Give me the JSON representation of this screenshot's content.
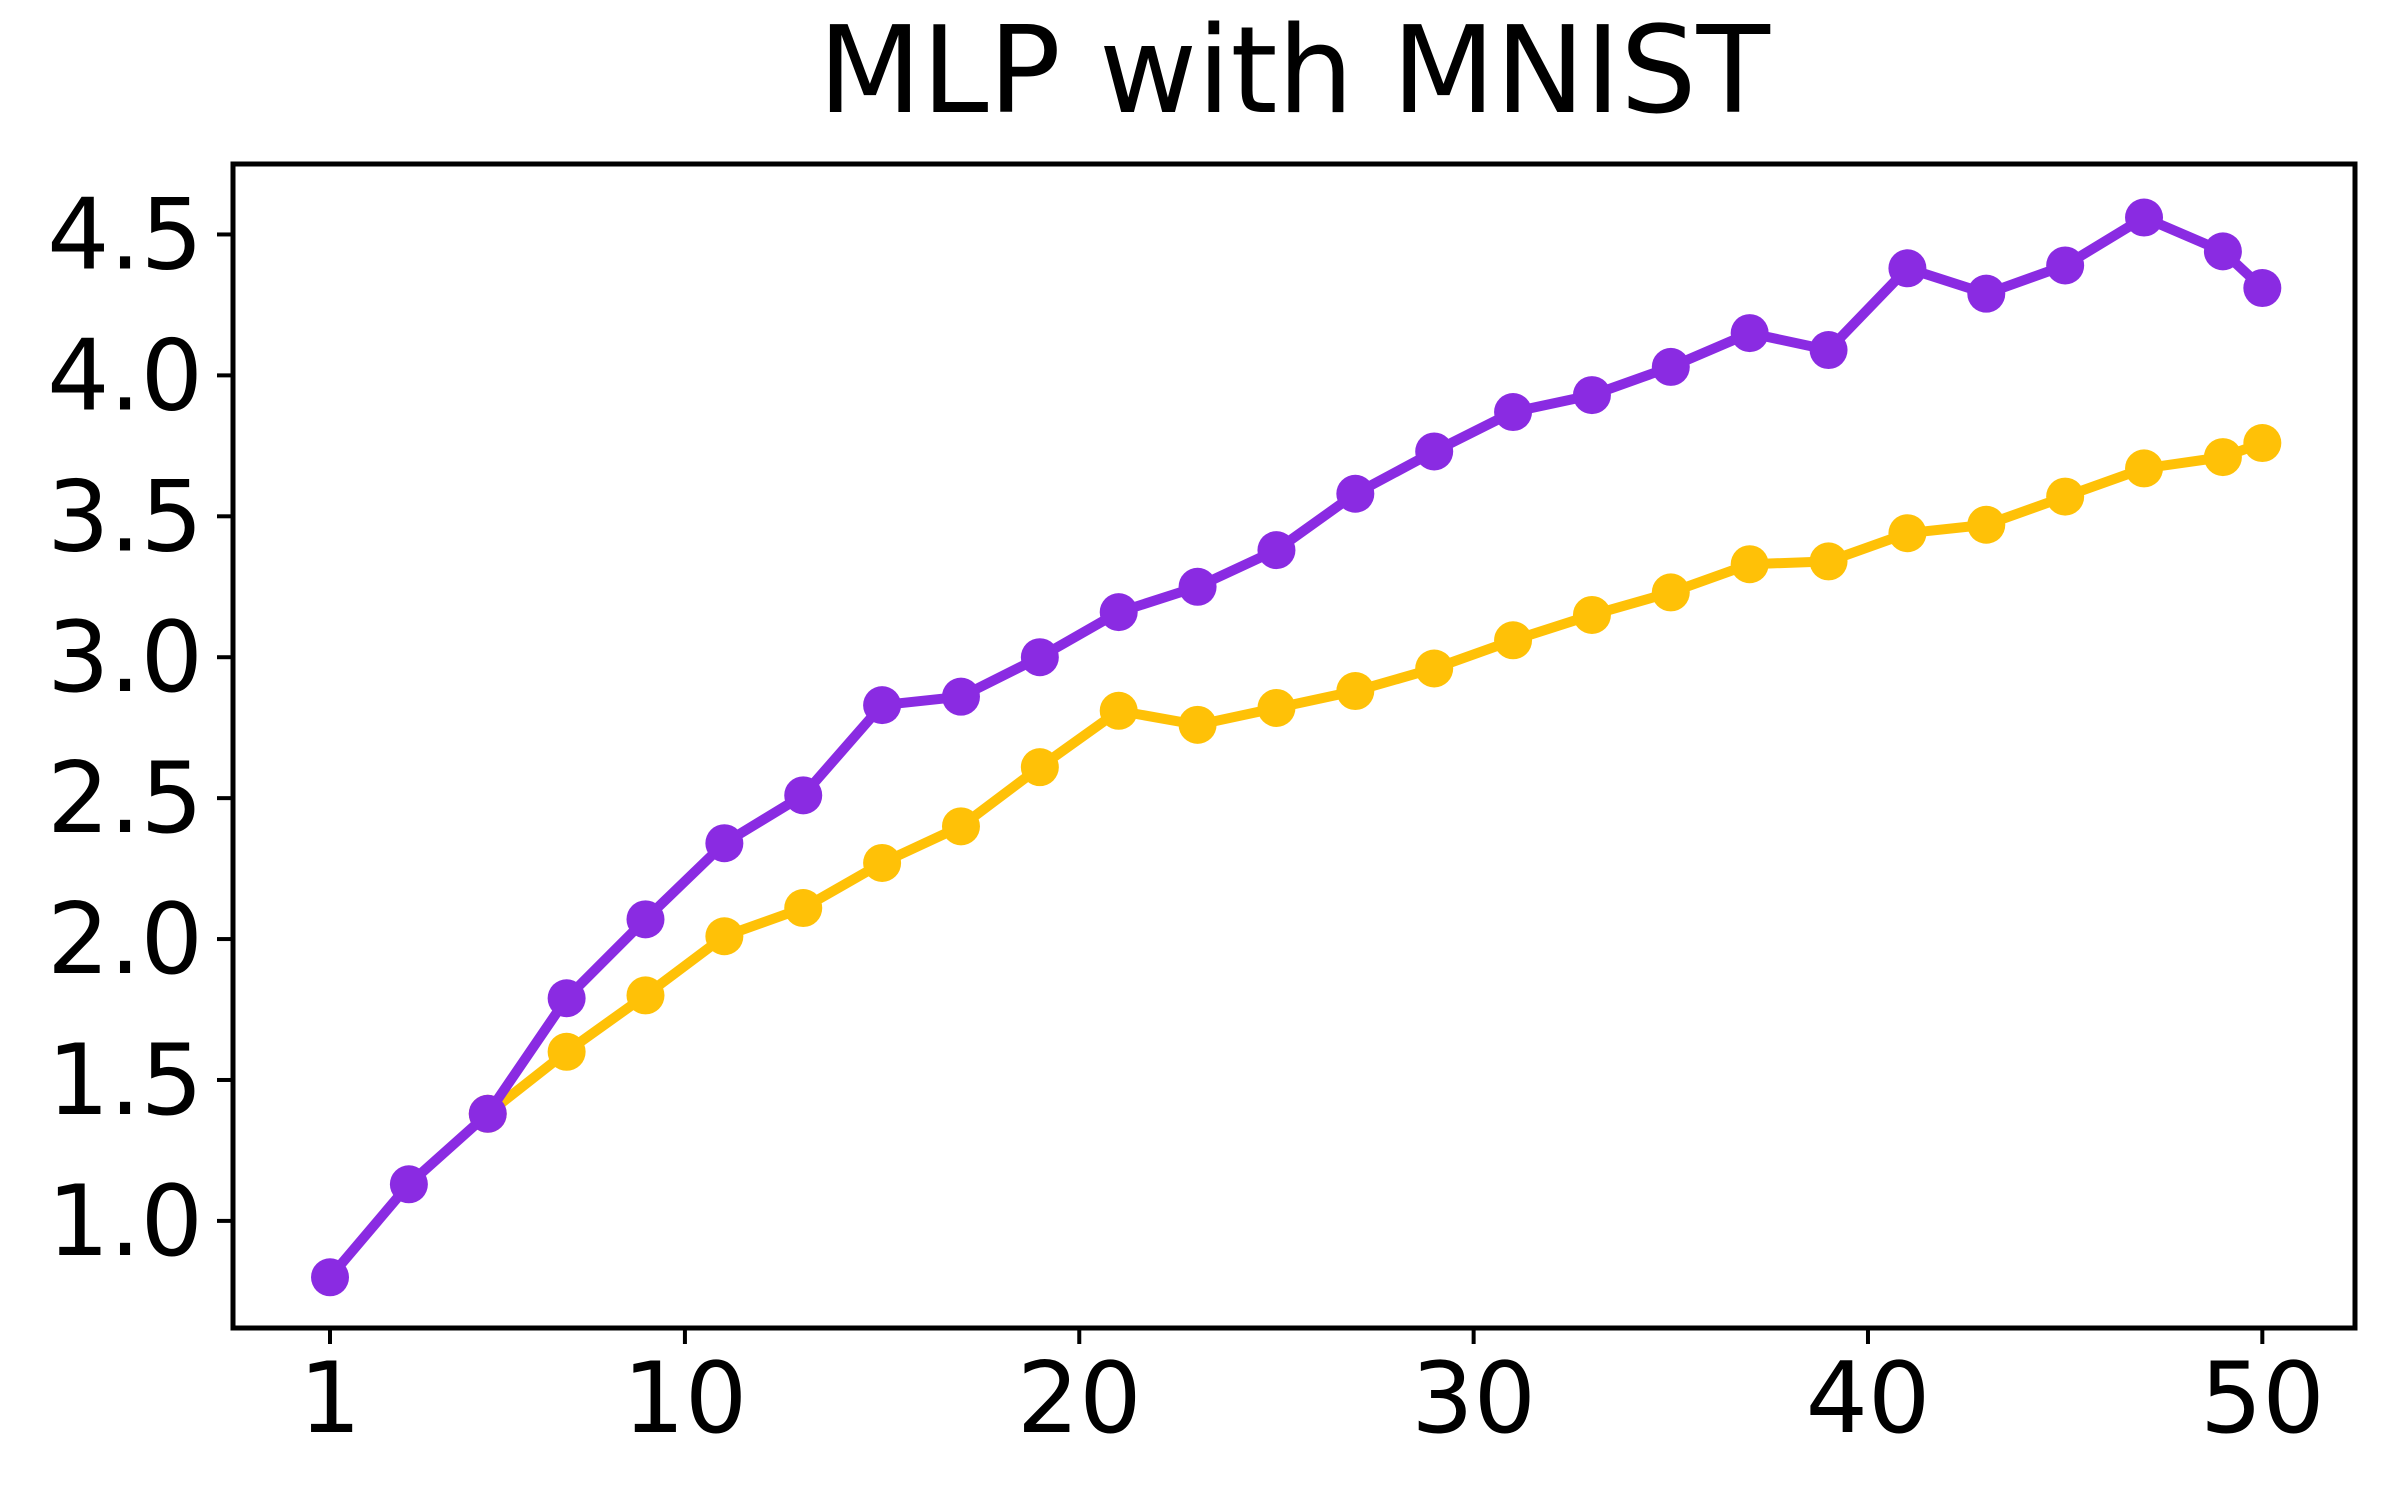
{
  "title": "MLP with MNIST",
  "chart_data": {
    "type": "line",
    "title": "MLP with MNIST",
    "xlabel": "",
    "ylabel": "",
    "grid": false,
    "legend": "none",
    "background_color": "#ffffff",
    "axis_color": "#000000",
    "xlim": [
      -1.46,
      52.35
    ],
    "ylim": [
      0.62,
      4.75
    ],
    "x_ticks": {
      "values": [
        1,
        10,
        20,
        30,
        40,
        50
      ],
      "labels": [
        "1",
        "10",
        "20",
        "30",
        "40",
        "50"
      ]
    },
    "y_ticks": {
      "values": [
        1.0,
        1.5,
        2.0,
        2.5,
        3.0,
        3.5,
        4.0,
        4.5
      ],
      "labels": [
        "1.0",
        "1.5",
        "2.0",
        "2.5",
        "3.0",
        "3.5",
        "4.0",
        "4.5"
      ]
    },
    "series": [
      {
        "name": "gold-series",
        "color": "#FFC107",
        "marker": "circle",
        "x": [
          5,
          7,
          9,
          11,
          13,
          15,
          17,
          19,
          21,
          23,
          25,
          27,
          29,
          31,
          33,
          35,
          37,
          39,
          41,
          43,
          45,
          47,
          49,
          50
        ],
        "y": [
          1.38,
          1.6,
          1.8,
          2.01,
          2.11,
          2.27,
          2.4,
          2.61,
          2.81,
          2.76,
          2.82,
          2.88,
          2.96,
          3.06,
          3.15,
          3.23,
          3.33,
          3.34,
          3.44,
          3.47,
          3.57,
          3.67,
          3.71,
          3.76
        ]
      },
      {
        "name": "purple-series",
        "color": "#8A2BE2",
        "marker": "circle",
        "x": [
          1,
          3,
          5,
          7,
          9,
          11,
          13,
          15,
          17,
          19,
          21,
          23,
          25,
          27,
          29,
          31,
          33,
          35,
          37,
          39,
          41,
          43,
          45,
          47,
          49,
          50
        ],
        "y": [
          0.8,
          1.13,
          1.38,
          1.79,
          2.07,
          2.34,
          2.51,
          2.83,
          2.86,
          3.0,
          3.16,
          3.25,
          3.38,
          3.58,
          3.73,
          3.87,
          3.93,
          4.03,
          4.15,
          4.09,
          4.38,
          4.29,
          4.39,
          4.56,
          4.44,
          4.31
        ]
      }
    ]
  }
}
